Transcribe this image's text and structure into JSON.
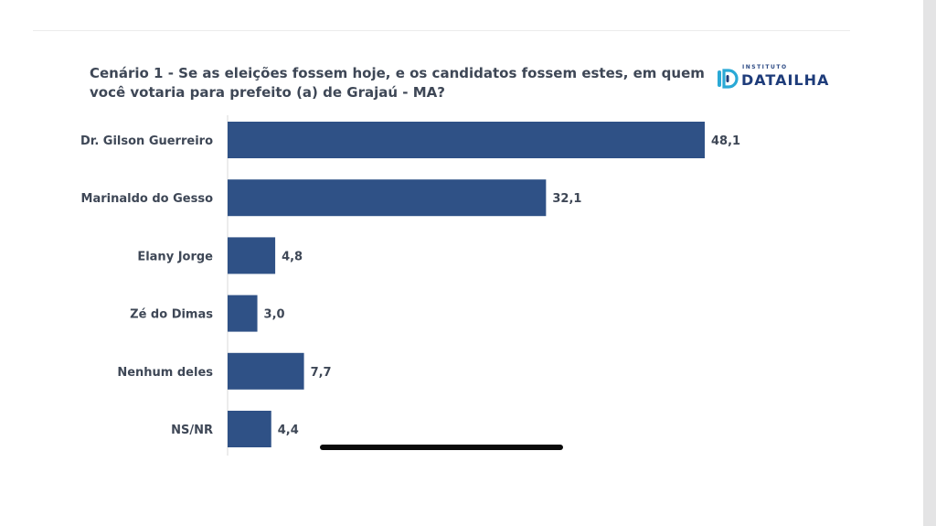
{
  "header": {
    "title": "Cenário 1 - Se as eleições fossem hoje, e os candidatos fossem estes, em quem você votaria para prefeito (a) de Grajaú - MA?"
  },
  "logo": {
    "small_text": "INSTITUTO",
    "brand_text": "DATAILHA",
    "icon": "dataih-logo-icon",
    "color": "#1e3c7a"
  },
  "chart_data": {
    "type": "bar",
    "orientation": "horizontal",
    "title": "Cenário 1 - Se as eleições fossem hoje, e os candidatos fossem estes, em quem você votaria para prefeito (a) de Grajaú - MA?",
    "categories": [
      "Dr. Gilson Guerreiro",
      "Marinaldo do Gesso",
      "Elany Jorge",
      "Zé do Dimas",
      "Nenhum deles",
      "NS/NR"
    ],
    "values": [
      48.1,
      32.1,
      4.8,
      3.0,
      7.7,
      4.4
    ],
    "value_labels": [
      "48,1",
      "32,1",
      "4,8",
      "3,0",
      "7,7",
      "4,4"
    ],
    "xlabel": "",
    "ylabel": "",
    "xlim": [
      0,
      48.1
    ],
    "grid": false,
    "bar_color": "#2f5186"
  }
}
